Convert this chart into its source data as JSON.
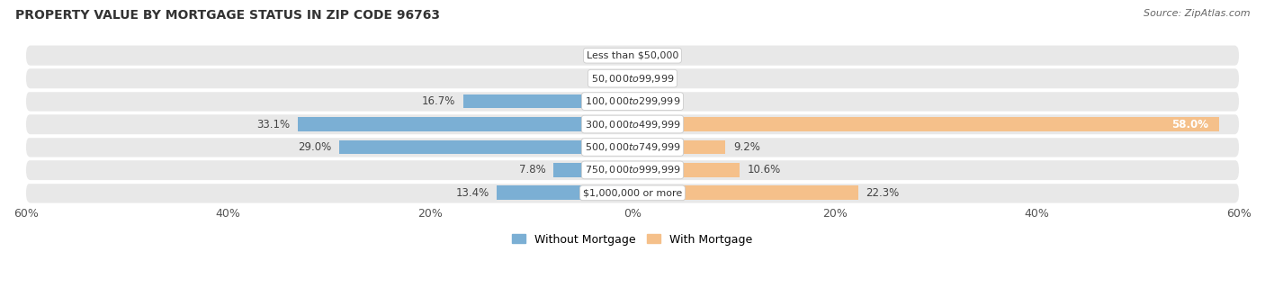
{
  "title": "PROPERTY VALUE BY MORTGAGE STATUS IN ZIP CODE 96763",
  "source": "Source: ZipAtlas.com",
  "categories": [
    "Less than $50,000",
    "$50,000 to $99,999",
    "$100,000 to $299,999",
    "$300,000 to $499,999",
    "$500,000 to $749,999",
    "$750,000 to $999,999",
    "$1,000,000 or more"
  ],
  "without_mortgage": [
    0.0,
    0.0,
    16.7,
    33.1,
    29.0,
    7.8,
    13.4
  ],
  "with_mortgage": [
    0.0,
    0.0,
    0.0,
    58.0,
    9.2,
    10.6,
    22.3
  ],
  "color_without": "#7BAFD4",
  "color_with": "#F5C08A",
  "xlim": 60.0,
  "background_row": "#E8E8E8",
  "background_fig": "#FFFFFF",
  "title_fontsize": 10,
  "source_fontsize": 8,
  "label_fontsize": 8.5,
  "category_fontsize": 8,
  "legend_fontsize": 9,
  "axis_label_fontsize": 9
}
